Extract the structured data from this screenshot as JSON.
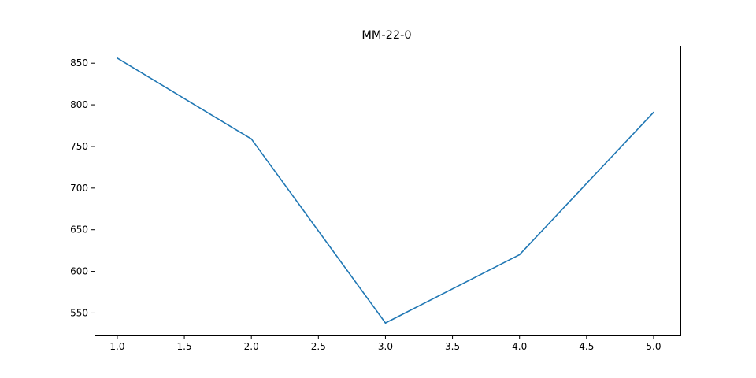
{
  "chart_data": {
    "type": "line",
    "title": "MM-22-0",
    "xlabel": "",
    "ylabel": "",
    "x": [
      1.0,
      2.0,
      3.0,
      4.0,
      5.0
    ],
    "series": [
      {
        "name": "MM-22-0",
        "values": [
          856,
          759,
          538,
          620,
          791
        ],
        "color": "#1f77b4"
      }
    ],
    "xlim": [
      0.83,
      5.2
    ],
    "ylim": [
      523,
      871
    ],
    "xticks": [
      1.0,
      1.5,
      2.0,
      2.5,
      3.0,
      3.5,
      4.0,
      4.5,
      5.0
    ],
    "xtick_labels": [
      "1.0",
      "1.5",
      "2.0",
      "2.5",
      "3.0",
      "3.5",
      "4.0",
      "4.5",
      "5.0"
    ],
    "yticks": [
      550,
      600,
      650,
      700,
      750,
      800,
      850
    ],
    "ytick_labels": [
      "550",
      "600",
      "650",
      "700",
      "750",
      "800",
      "850"
    ],
    "grid": false,
    "legend": "none"
  }
}
